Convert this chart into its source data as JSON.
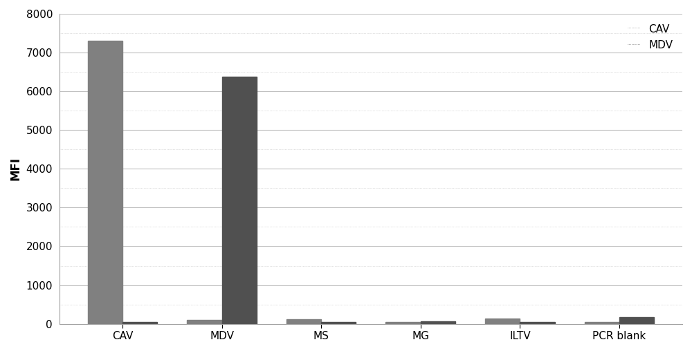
{
  "categories": [
    "CAV",
    "MDV",
    "MS",
    "MG",
    "ILTV",
    "PCR blank"
  ],
  "cav_values": [
    7300,
    100,
    120,
    50,
    130,
    50
  ],
  "mdv_values": [
    50,
    6380,
    50,
    70,
    50,
    180
  ],
  "cav_color": "#808080",
  "mdv_color": "#505050",
  "ylabel": "MFI",
  "ylim": [
    0,
    8000
  ],
  "yticks": [
    0,
    1000,
    2000,
    3000,
    4000,
    5000,
    6000,
    7000,
    8000
  ],
  "legend_labels": [
    "CAV",
    "MDV"
  ],
  "bar_width": 0.35,
  "background_color": "#ffffff",
  "grid_color": "#c0c0c0",
  "title_fontsize": 12,
  "axis_fontsize": 12,
  "tick_fontsize": 11
}
